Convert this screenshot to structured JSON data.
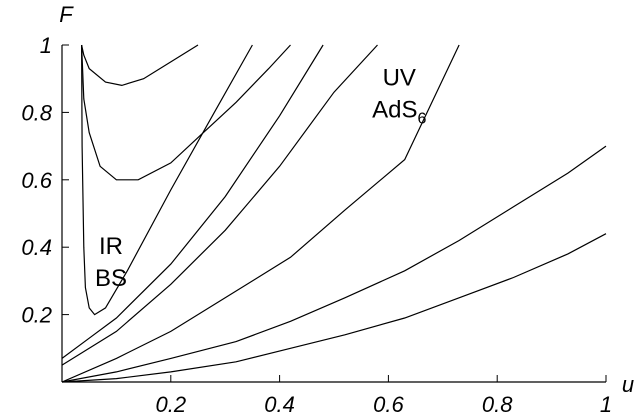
{
  "chart_data": {
    "type": "line",
    "title": "",
    "xlabel": "u",
    "ylabel": "F",
    "xlim": [
      0,
      1
    ],
    "ylim": [
      0,
      1
    ],
    "x_ticks": [
      "0.2",
      "0.4",
      "0.6",
      "0.8",
      "1"
    ],
    "y_ticks": [
      "0.2",
      "0.4",
      "0.6",
      "0.8",
      "1"
    ],
    "grid": false,
    "annotations": [
      {
        "lines": [
          "IR",
          "BS"
        ],
        "x": 0.09,
        "y": 0.38
      },
      {
        "lines": [
          "UV",
          "AdS6"
        ],
        "x": 0.62,
        "y": 0.88
      }
    ],
    "series": [
      {
        "x": [
          0.036,
          0.04,
          0.05,
          0.08,
          0.11,
          0.15,
          0.2,
          0.25
        ],
        "y": [
          1.0,
          0.97,
          0.93,
          0.89,
          0.88,
          0.9,
          0.95,
          1.0
        ]
      },
      {
        "x": [
          0.036,
          0.04,
          0.05,
          0.07,
          0.1,
          0.14,
          0.2,
          0.26,
          0.32,
          0.38,
          0.42
        ],
        "y": [
          1.0,
          0.84,
          0.74,
          0.64,
          0.6,
          0.6,
          0.65,
          0.74,
          0.83,
          0.93,
          1.0
        ]
      },
      {
        "x": [
          0.036,
          0.037,
          0.04,
          0.043,
          0.05,
          0.06,
          0.08,
          0.12,
          0.2,
          0.28,
          0.35
        ],
        "y": [
          1.0,
          0.7,
          0.4,
          0.28,
          0.22,
          0.2,
          0.22,
          0.33,
          0.57,
          0.8,
          1.0
        ]
      },
      {
        "x": [
          0.0,
          0.05,
          0.1,
          0.2,
          0.3,
          0.4,
          0.48
        ],
        "y": [
          0.07,
          0.13,
          0.19,
          0.35,
          0.55,
          0.79,
          1.0
        ]
      },
      {
        "x": [
          0.0,
          0.05,
          0.1,
          0.2,
          0.3,
          0.4,
          0.5,
          0.58
        ],
        "y": [
          0.05,
          0.1,
          0.15,
          0.29,
          0.45,
          0.64,
          0.86,
          1.0
        ]
      },
      {
        "x": [
          0.0,
          0.1,
          0.2,
          0.3,
          0.42,
          0.52,
          0.63,
          0.73
        ],
        "y": [
          0.0,
          0.07,
          0.15,
          0.25,
          0.37,
          0.51,
          0.66,
          1.0
        ]
      },
      {
        "x": [
          0.0,
          0.1,
          0.2,
          0.32,
          0.42,
          0.52,
          0.63,
          0.73,
          0.83,
          0.93,
          1.0
        ],
        "y": [
          0.0,
          0.03,
          0.07,
          0.12,
          0.18,
          0.25,
          0.33,
          0.42,
          0.52,
          0.62,
          0.7
        ]
      },
      {
        "x": [
          0.0,
          0.1,
          0.2,
          0.32,
          0.42,
          0.52,
          0.63,
          0.73,
          0.83,
          0.93,
          1.0
        ],
        "y": [
          0.0,
          0.01,
          0.03,
          0.06,
          0.1,
          0.14,
          0.19,
          0.25,
          0.31,
          0.38,
          0.44
        ]
      }
    ]
  }
}
